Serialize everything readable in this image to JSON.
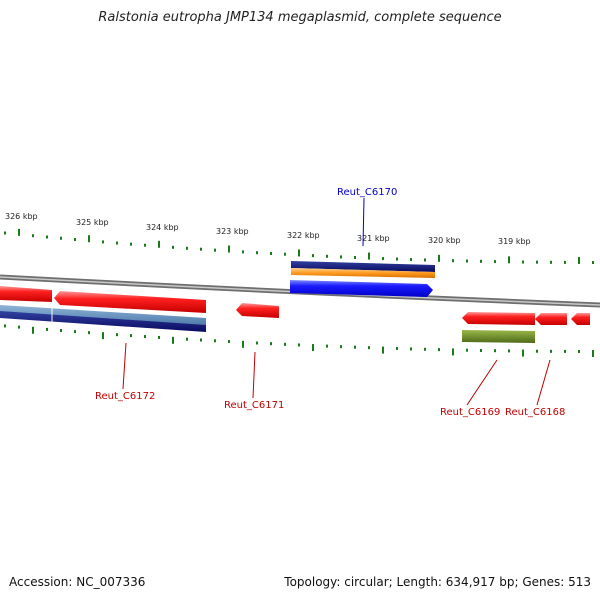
{
  "title": "Ralstonia eutropha JMP134 megaplasmid, complete sequence",
  "footer": {
    "accession": "Accession: NC_007336",
    "summary": "Topology: circular; Length: 634,917 bp; Genes: 513"
  },
  "colors": {
    "tick": "#1a7a1a",
    "backbone": "#8a8a8a",
    "label_red": "#c00000",
    "label_blue": "#0000cc"
  },
  "scale_labels": [
    "326 kbp",
    "325 kbp",
    "324 kbp",
    "323 kbp",
    "322 kbp",
    "321 kbp",
    "320 kbp",
    "319 kbp"
  ],
  "genes": [
    {
      "id": "Reut_C6172",
      "color": "#c00000"
    },
    {
      "id": "Reut_C6171",
      "color": "#c00000"
    },
    {
      "id": "Reut_C6170",
      "color": "#0000cc"
    },
    {
      "id": "Reut_C6169",
      "color": "#c00000"
    },
    {
      "id": "Reut_C6168",
      "color": "#c00000"
    }
  ]
}
